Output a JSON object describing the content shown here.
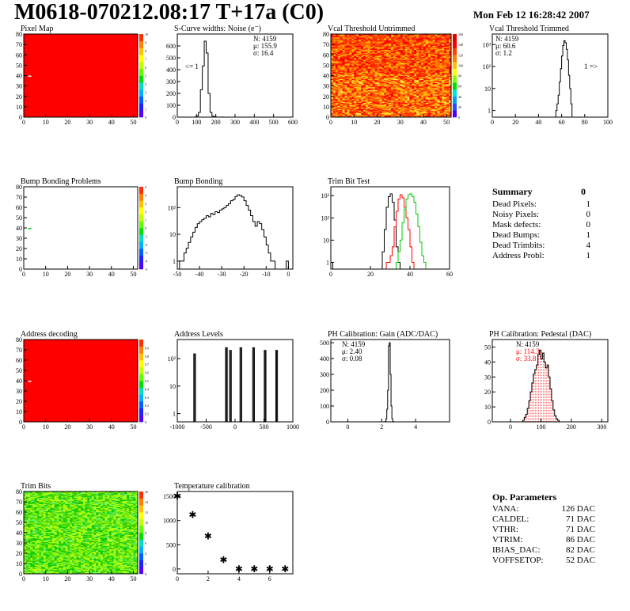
{
  "header": {
    "title": "M0618-070212.08:17 T+17a (C0)",
    "date": "Mon Feb 12 16:28:42 2007"
  },
  "colors": {
    "red_map": "#ff0000",
    "green_trim": "#00cc00",
    "hist_line": "#000000",
    "pedestal_fit": "#ff0000"
  },
  "summary": {
    "title": "Summary",
    "total": "0",
    "rows": [
      {
        "label": "Dead Pixels:",
        "value": "1"
      },
      {
        "label": "Noisy Pixels:",
        "value": "0"
      },
      {
        "label": "Mask defects:",
        "value": "0"
      },
      {
        "label": "Dead Bumps:",
        "value": "1"
      },
      {
        "label": "Dead Trimbits:",
        "value": "4"
      },
      {
        "label": "Address Probl:",
        "value": "1"
      }
    ]
  },
  "op_params": {
    "title": "Op. Parameters",
    "rows": [
      {
        "label": "VANA:",
        "value": "126 DAC"
      },
      {
        "label": "CALDEL:",
        "value": "71 DAC"
      },
      {
        "label": "VTHR:",
        "value": "71 DAC"
      },
      {
        "label": "VTRIM:",
        "value": "86 DAC"
      },
      {
        "label": "IBIAS_DAC:",
        "value": "82 DAC"
      },
      {
        "label": "VOFFSETOP:",
        "value": "52 DAC"
      }
    ]
  },
  "chart_data": [
    {
      "id": "pixel-map",
      "type": "heatmap",
      "title": "Pixel Map",
      "xlim": [
        0,
        52
      ],
      "ylim": [
        0,
        80
      ],
      "xticks": [
        0,
        10,
        20,
        30,
        40,
        50
      ],
      "yticks": [
        0,
        10,
        20,
        30,
        40,
        50,
        60,
        70,
        80
      ],
      "fill": "uniform-red",
      "dead_pixel": [
        2,
        40
      ],
      "zscale": {
        "min": 0,
        "max": 10,
        "ticks": [
          0,
          1,
          2,
          3,
          4,
          5,
          6,
          7,
          8,
          9,
          10
        ]
      }
    },
    {
      "id": "noise",
      "type": "histogram",
      "title": "S-Curve widths: Noise (e⁻)",
      "xlim": [
        0,
        600
      ],
      "ylim": [
        0,
        700
      ],
      "xticks": [
        0,
        100,
        200,
        300,
        400,
        500,
        600
      ],
      "yticks": [
        0,
        100,
        200,
        300,
        400,
        500,
        600
      ],
      "bin_start": 90,
      "bin_width": 10,
      "values": [
        2,
        10,
        40,
        230,
        430,
        640,
        540,
        200,
        40,
        8,
        3,
        1,
        0,
        0,
        1,
        0
      ],
      "stats": [
        "N: 4159",
        "μ: 155.9",
        "σ: 16.4"
      ],
      "annotation": "<= 1"
    },
    {
      "id": "vcal-untrimmed",
      "type": "heatmap",
      "title": "Vcal Threshold Untrimmed",
      "xlim": [
        0,
        52
      ],
      "ylim": [
        0,
        80
      ],
      "xticks": [
        0,
        10,
        20,
        30,
        40,
        50
      ],
      "yticks": [
        0,
        10,
        20,
        30,
        40,
        50,
        60,
        70,
        80
      ],
      "fill": "noisy-orange",
      "zscale": {
        "min": 0,
        "max": 160,
        "ticks": [
          0,
          20,
          40,
          60,
          80,
          100,
          120,
          140,
          160
        ]
      }
    },
    {
      "id": "vcal-trimmed",
      "type": "histogram",
      "title": "Vcal Threshold Trimmed",
      "log": true,
      "xlim": [
        0,
        100
      ],
      "ylim": [
        0.5,
        3000
      ],
      "xticks": [
        0,
        20,
        40,
        60,
        80,
        100
      ],
      "ytick_labels": [
        "1",
        "10",
        "10²",
        "10³"
      ],
      "bin_start": 55,
      "bin_width": 1,
      "values": [
        1,
        2,
        5,
        20,
        80,
        300,
        900,
        1500,
        1200,
        600,
        200,
        40,
        10,
        2
      ],
      "stats": [
        "N: 4159",
        "μ: 60.6",
        "σ: 1.2"
      ],
      "annotation": "1 =>"
    },
    {
      "id": "bump-problems",
      "type": "heatmap",
      "title": "Bump Bonding Problems",
      "xlim": [
        0,
        52
      ],
      "ylim": [
        0,
        80
      ],
      "xticks": [
        0,
        10,
        20,
        30,
        40,
        50
      ],
      "yticks": [
        0,
        10,
        20,
        30,
        40,
        50,
        60,
        70,
        80
      ],
      "fill": "empty",
      "dead_pixel": [
        2,
        40
      ],
      "zscale": {
        "min": -5,
        "max": 5,
        "ticks": [
          -5,
          -4,
          -3,
          -2,
          -1,
          0,
          1,
          2,
          3,
          4,
          5
        ]
      }
    },
    {
      "id": "bump-bonding",
      "type": "histogram",
      "title": "Bump Bonding",
      "log": true,
      "xlim": [
        -50,
        2
      ],
      "ylim": [
        0.5,
        600
      ],
      "xticks": [
        -50,
        -40,
        -30,
        -20,
        -10,
        0
      ],
      "ytick_labels": [
        "1",
        "10",
        "10²"
      ],
      "bin_start": -49,
      "bin_width": 1,
      "values": [
        1,
        1,
        2,
        3,
        5,
        8,
        12,
        18,
        25,
        30,
        35,
        40,
        50,
        45,
        60,
        55,
        70,
        65,
        80,
        90,
        100,
        120,
        140,
        180,
        200,
        260,
        300,
        280,
        250,
        180,
        120,
        80,
        50,
        30,
        20,
        30,
        25,
        15,
        8,
        4,
        2,
        1,
        1,
        0,
        0,
        0,
        0,
        0,
        1
      ],
      "annotation": ""
    },
    {
      "id": "trim-bit-test",
      "type": "histogram",
      "title": "Trim Bit Test",
      "log": true,
      "xlim": [
        0,
        60
      ],
      "ylim": [
        0.5,
        2500
      ],
      "xticks": [
        0,
        20,
        40,
        60
      ],
      "ytick_labels": [
        "1",
        "10",
        "10²",
        "10³"
      ],
      "series": [
        {
          "color": "#000000",
          "bin_start": 0,
          "bin_width": 1,
          "values": [
            1,
            0,
            0,
            0,
            0,
            0,
            0,
            0,
            0,
            0,
            0,
            0,
            0,
            0,
            0,
            0,
            0,
            0,
            0,
            0,
            0,
            0,
            0,
            0,
            0,
            0,
            3,
            30,
            300,
            900,
            1200,
            500,
            80,
            5,
            1
          ]
        },
        {
          "color": "#ff0000",
          "bin_start": 28,
          "bin_width": 1,
          "values": [
            1,
            1,
            2,
            5,
            40,
            200,
            700,
            1100,
            800,
            300,
            100,
            30,
            5,
            1
          ]
        },
        {
          "color": "#00cc00",
          "bin_start": 33,
          "bin_width": 1,
          "values": [
            1,
            3,
            10,
            60,
            250,
            700,
            1100,
            1200,
            900,
            500,
            150,
            40,
            8,
            2,
            1
          ]
        }
      ]
    },
    {
      "id": "address-decoding",
      "type": "heatmap",
      "title": "Address decoding",
      "xlim": [
        0,
        52
      ],
      "ylim": [
        0,
        80
      ],
      "xticks": [
        0,
        10,
        20,
        30,
        40,
        50
      ],
      "yticks": [
        0,
        10,
        20,
        30,
        40,
        50,
        60,
        70,
        80
      ],
      "fill": "uniform-red",
      "dead_pixel": [
        2,
        40
      ],
      "zscale": {
        "min": 0,
        "max": 1,
        "ticks": [
          0,
          0.1,
          0.2,
          0.3,
          0.4,
          0.5,
          0.6,
          0.7,
          0.8,
          0.9
        ]
      }
    },
    {
      "id": "address-levels",
      "type": "histogram",
      "title": "Address Levels",
      "log": true,
      "xlim": [
        -1000,
        1000
      ],
      "ylim": [
        0.5,
        500
      ],
      "xticks": [
        -1000,
        -500,
        0,
        500,
        1000
      ],
      "ytick_labels": [
        "1",
        "10",
        "10²"
      ],
      "peaks": [
        -700,
        -150,
        -80,
        100,
        320,
        520,
        720
      ],
      "peak_heights": [
        150,
        250,
        200,
        250,
        250,
        200,
        200
      ]
    },
    {
      "id": "ph-gain",
      "type": "histogram",
      "title": "PH Calibration: Gain (ADC/DAC)",
      "xlim": [
        -1,
        6
      ],
      "ylim": [
        0,
        520
      ],
      "xticks": [
        0,
        2,
        4
      ],
      "yticks": [
        0,
        100,
        200,
        300,
        400,
        500
      ],
      "bin_start": 2.2,
      "bin_width": 0.05,
      "values": [
        2,
        20,
        80,
        200,
        480,
        500,
        300,
        100,
        20,
        2
      ],
      "stats": [
        "N: 4159",
        "μ: 2.40",
        "σ: 0.08"
      ]
    },
    {
      "id": "ph-pedestal",
      "type": "histogram",
      "title": "PH Calibration: Pedestal (DAC)",
      "xlim": [
        -60,
        320
      ],
      "ylim": [
        0,
        55
      ],
      "xticks": [
        0,
        100,
        200,
        300
      ],
      "yticks": [
        0,
        10,
        20,
        30,
        40,
        50
      ],
      "bin_start": 40,
      "bin_width": 5,
      "values": [
        1,
        3,
        5,
        9,
        14,
        20,
        26,
        32,
        35,
        38,
        45,
        48,
        42,
        46,
        40,
        36,
        38,
        30,
        22,
        14,
        8,
        4,
        2,
        1
      ],
      "stats": [
        "N: 4159",
        "μ: 114.3",
        "σ: 33.8"
      ],
      "fit": {
        "color": "#ff0000",
        "mean": 114.3,
        "sigma": 33.8,
        "peak": 39
      }
    },
    {
      "id": "trim-bits",
      "type": "heatmap",
      "title": "Trim Bits",
      "xlim": [
        0,
        52
      ],
      "ylim": [
        0,
        80
      ],
      "xticks": [
        0,
        10,
        20,
        30,
        40,
        50
      ],
      "yticks": [
        0,
        10,
        20,
        30,
        40,
        50,
        60,
        70,
        80
      ],
      "fill": "noisy-green",
      "zscale": {
        "min": 0,
        "max": 16,
        "ticks": [
          0,
          2,
          4,
          6,
          8,
          10,
          12,
          14,
          16
        ]
      }
    },
    {
      "id": "temperature",
      "type": "scatter",
      "title": "Temperature calibration",
      "xlim": [
        0,
        7.5
      ],
      "ylim": [
        -100,
        1600
      ],
      "xticks": [
        0,
        2,
        4,
        6
      ],
      "yticks": [
        0,
        500,
        1000,
        1500
      ],
      "x": [
        0,
        1,
        2,
        3,
        4,
        5,
        6,
        7
      ],
      "y": [
        1500,
        1120,
        680,
        190,
        0,
        0,
        0,
        0
      ]
    }
  ]
}
